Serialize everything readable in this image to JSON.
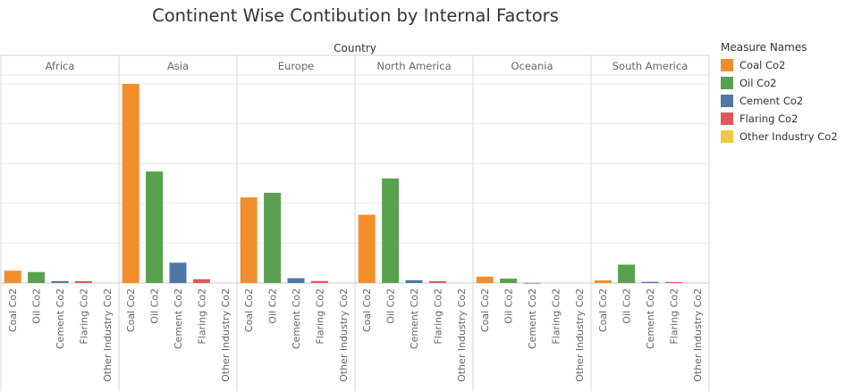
{
  "chart_data": {
    "type": "bar",
    "title": "Continent Wise Contibution by Internal Factors",
    "column_header": "Country",
    "panels": [
      "Africa",
      "Asia",
      "Europe",
      "North America",
      "Oceania",
      "South America"
    ],
    "categories": [
      "Coal Co2",
      "Oil Co2",
      "Cement Co2",
      "Flaring Co2",
      "Other Industry Co2"
    ],
    "colors": [
      "#f28e2b",
      "#59a14f",
      "#4e79a7",
      "#e15759",
      "#edc948"
    ],
    "values": [
      [
        0.062,
        0.055,
        0.009,
        0.009,
        0.0
      ],
      [
        1.0,
        0.56,
        0.102,
        0.019,
        0.0
      ],
      [
        0.43,
        0.453,
        0.024,
        0.01,
        0.0
      ],
      [
        0.343,
        0.525,
        0.014,
        0.009,
        0.0
      ],
      [
        0.032,
        0.022,
        0.001,
        0.0,
        0.0
      ],
      [
        0.013,
        0.092,
        0.006,
        0.005,
        0.0
      ]
    ],
    "ylim": [
      0,
      1.0
    ],
    "grid": true,
    "legend": {
      "title": "Measure Names",
      "position": "right",
      "entries": [
        "Coal Co2",
        "Oil Co2",
        "Cement Co2",
        "Flaring Co2",
        "Other Industry Co2"
      ]
    }
  }
}
